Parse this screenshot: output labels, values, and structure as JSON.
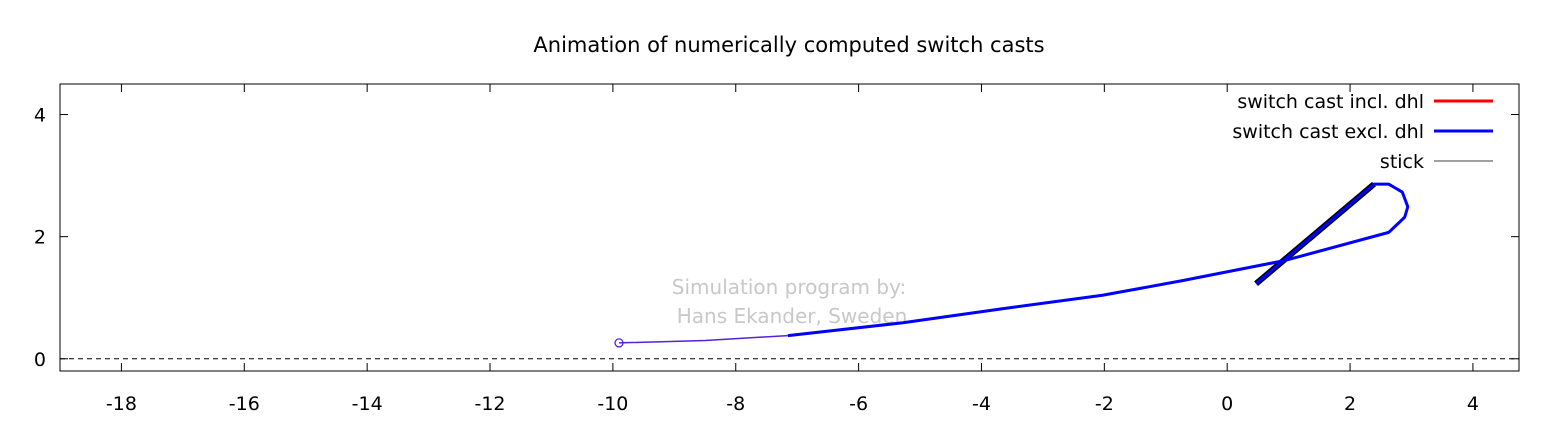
{
  "chart_data": {
    "type": "line",
    "title": "Animation of numerically computed switch casts",
    "xlabel": "",
    "ylabel": "",
    "xlim": [
      -19,
      4.75
    ],
    "ylim": [
      -0.2,
      4.5
    ],
    "xticks": [
      -18,
      -16,
      -14,
      -12,
      -10,
      -8,
      -6,
      -4,
      -2,
      0,
      2,
      4
    ],
    "yticks": [
      0,
      2,
      4
    ],
    "grid": false,
    "legend_position": "top-right",
    "annotation": [
      "Simulation program by:",
      "Hans Ekander, Sweden"
    ],
    "series": [
      {
        "name": "switch cast incl. dhl",
        "color": "#ff0000",
        "x": [],
        "y": []
      },
      {
        "name": "switch cast excl. dhl",
        "color": "#0000ff",
        "tip_x": [
          -9.9,
          -8.5,
          -7.15
        ],
        "tip_y": [
          0.26,
          0.3,
          0.38
        ],
        "x": [
          -7.15,
          -5.28,
          -3.66,
          -2.03,
          -0.73,
          0.94,
          2.63,
          2.89,
          2.94,
          2.85,
          2.63,
          2.39,
          0.47
        ],
        "y": [
          0.38,
          0.59,
          0.82,
          1.04,
          1.28,
          1.61,
          2.07,
          2.32,
          2.49,
          2.73,
          2.86,
          2.86,
          1.23
        ]
      },
      {
        "name": "stick",
        "color": "#808080",
        "x": [
          0.47,
          2.39
        ],
        "y": [
          1.23,
          2.86
        ]
      }
    ],
    "ground_line_y": 0
  }
}
